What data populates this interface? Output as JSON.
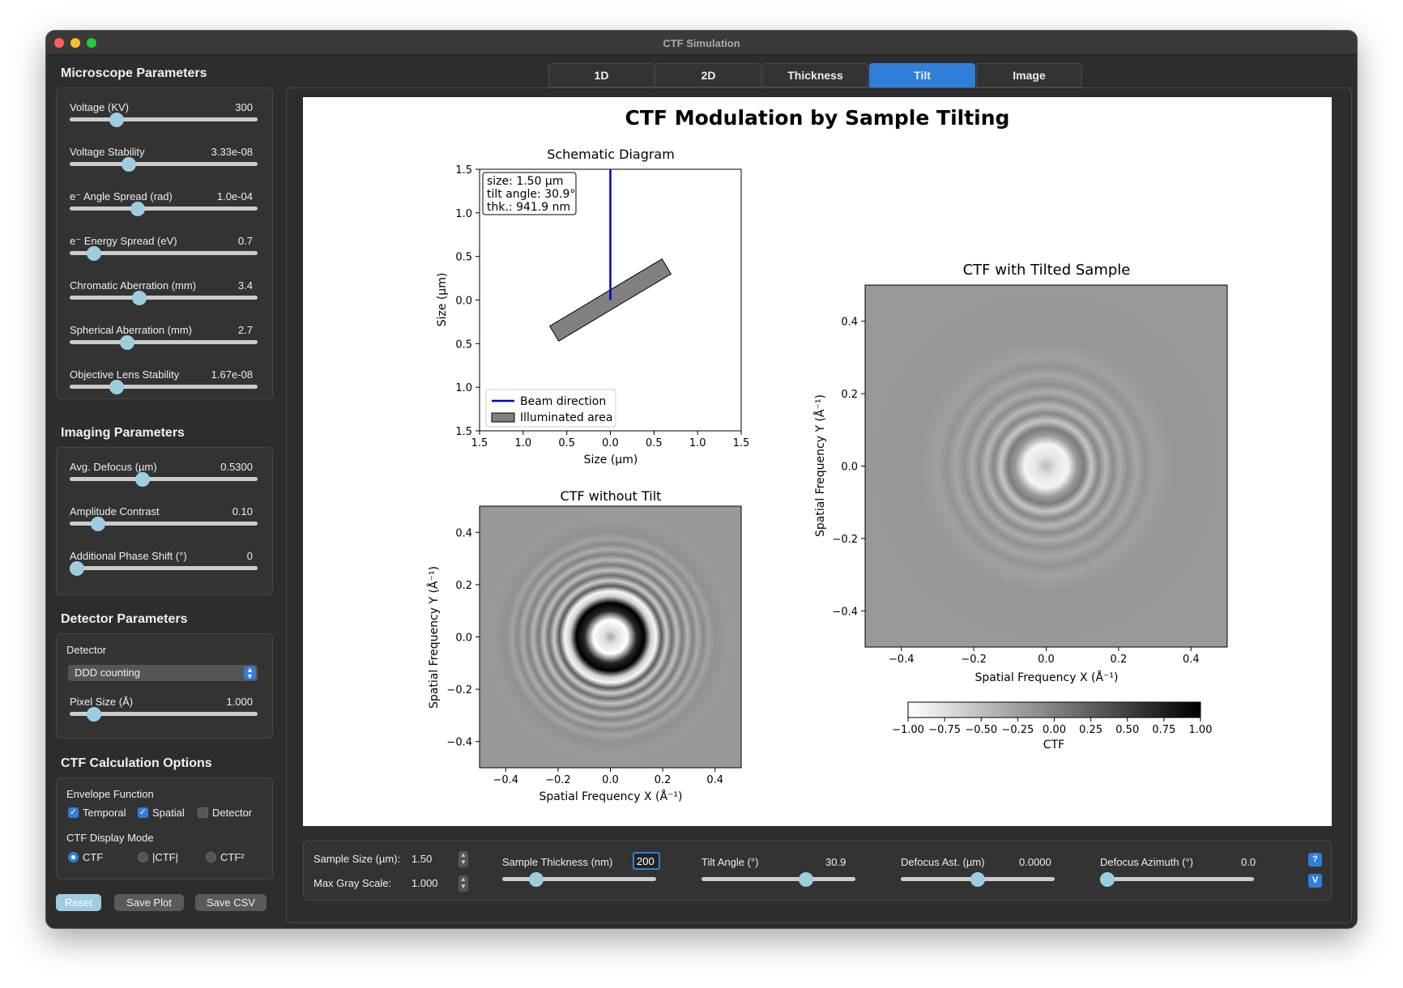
{
  "window": {
    "title": "CTF Simulation"
  },
  "sidebar": {
    "microscope": {
      "heading": "Microscope Parameters",
      "sliders": [
        {
          "label": "Voltage (KV)",
          "value": "300",
          "frac": 0.23
        },
        {
          "label": "Voltage Stability",
          "value": "3.33e-08",
          "frac": 0.3
        },
        {
          "label": "e⁻ Angle Spread (rad)",
          "value": "1.0e-04",
          "frac": 0.35
        },
        {
          "label": "e⁻ Energy Spread (eV)",
          "value": "0.7",
          "frac": 0.1
        },
        {
          "label": "Chromatic Aberration (mm)",
          "value": "3.4",
          "frac": 0.36
        },
        {
          "label": "Spherical Aberration (mm)",
          "value": "2.7",
          "frac": 0.29
        },
        {
          "label": "Objective Lens Stability",
          "value": "1.67e-08",
          "frac": 0.23
        }
      ]
    },
    "imaging": {
      "heading": "Imaging Parameters",
      "sliders": [
        {
          "label": "Avg. Defocus (µm)",
          "value": "0.5300",
          "frac": 0.38
        },
        {
          "label": "Amplitude Contrast",
          "value": "0.10",
          "frac": 0.12
        },
        {
          "label": "Additional Phase Shift (°)",
          "value": "0",
          "frac": 0.0
        }
      ]
    },
    "detector": {
      "heading": "Detector Parameters",
      "label": "Detector",
      "selected": "DDD counting",
      "pixel_label": "Pixel Size (Å)",
      "pixel_value": "1.000",
      "pixel_frac": 0.1
    },
    "options": {
      "heading": "CTF Calculation Options",
      "envelope_label": "Envelope Function",
      "temporal": "Temporal",
      "spatial": "Spatial",
      "detector": "Detector",
      "mode_label": "CTF Display Mode",
      "mode_ctf": "CTF",
      "mode_abs": "|CTF|",
      "mode_sq": "CTF²"
    },
    "buttons": {
      "reset": "Reset",
      "save_plot": "Save Plot",
      "save_csv": "Save CSV"
    }
  },
  "tabs": [
    "1D",
    "2D",
    "Thickness",
    "Tilt",
    "Image"
  ],
  "active_tab": "Tilt",
  "chart_data": [
    {
      "type": "diagram",
      "suptitle": "CTF Modulation by Sample Tilting",
      "title": "Schematic Diagram",
      "xlabel": "Size (µm)",
      "ylabel": "Size (µm)",
      "xlim": [
        -1.5,
        1.5
      ],
      "ylim": [
        -1.5,
        1.5
      ],
      "x_ticks": [
        "1.5",
        "1.0",
        "0.5",
        "0.0",
        "0.5",
        "1.0",
        "1.5"
      ],
      "y_ticks": [
        "1.5",
        "1.0",
        "0.5",
        "0.0",
        "0.5",
        "1.0",
        "1.5"
      ],
      "info_box": [
        "size: 1.50 µm",
        "tilt angle: 30.9°",
        "thk.: 941.9 nm"
      ],
      "legend": [
        "Beam direction",
        "Illuminated area"
      ],
      "beam_color": "#0000cc",
      "area_color": "#808080",
      "sample_size": 1.5,
      "tilt_angle_deg": 30.9,
      "thickness_um": 0.2
    },
    {
      "type": "heatmap",
      "title": "CTF without Tilt",
      "xlabel": "Spatial Frequency X (Å⁻¹)",
      "ylabel": "Spatial Frequency Y (Å⁻¹)",
      "xlim": [
        -0.5,
        0.5
      ],
      "ylim": [
        -0.5,
        0.5
      ],
      "x_ticks": [
        "−0.4",
        "−0.2",
        "0.0",
        "0.2",
        "0.4"
      ],
      "y_ticks": [
        "0.4",
        "0.2",
        "0.0",
        "−0.2",
        "−0.4"
      ]
    },
    {
      "type": "heatmap",
      "title": "CTF with Tilted Sample",
      "xlabel": "Spatial Frequency X (Å⁻¹)",
      "ylabel": "Spatial Frequency Y (Å⁻¹)",
      "xlim": [
        -0.5,
        0.5
      ],
      "ylim": [
        -0.5,
        0.5
      ],
      "x_ticks": [
        "−0.4",
        "−0.2",
        "0.0",
        "0.2",
        "0.4"
      ],
      "y_ticks": [
        "0.4",
        "0.2",
        "0.0",
        "−0.2",
        "−0.4"
      ],
      "colorbar": {
        "label": "CTF",
        "ticks": [
          "−1.00",
          "−0.75",
          "−0.50",
          "−0.25",
          "0.00",
          "0.25",
          "0.50",
          "0.75",
          "1.00"
        ],
        "range": [
          -1,
          1
        ]
      }
    }
  ],
  "controls": {
    "sample_size_label": "Sample Size (µm):",
    "sample_size_value": "1.50",
    "max_gray_label": "Max Gray Scale:",
    "max_gray_value": "1.000",
    "thickness_label": "Sample Thickness (nm)",
    "thickness_value": "200",
    "thickness_frac": 0.19,
    "tilt_label": "Tilt Angle (°)",
    "tilt_value": "30.9",
    "tilt_frac": 0.7,
    "defocus_ast_label": "Defocus Ast. (µm)",
    "defocus_ast_value": "0.0000",
    "defocus_ast_frac": 0.5,
    "defocus_az_label": "Defocus Azimuth (°)",
    "defocus_az_value": "0.0",
    "defocus_az_frac": 0.0,
    "help_btn": "?",
    "v_btn": "V"
  }
}
